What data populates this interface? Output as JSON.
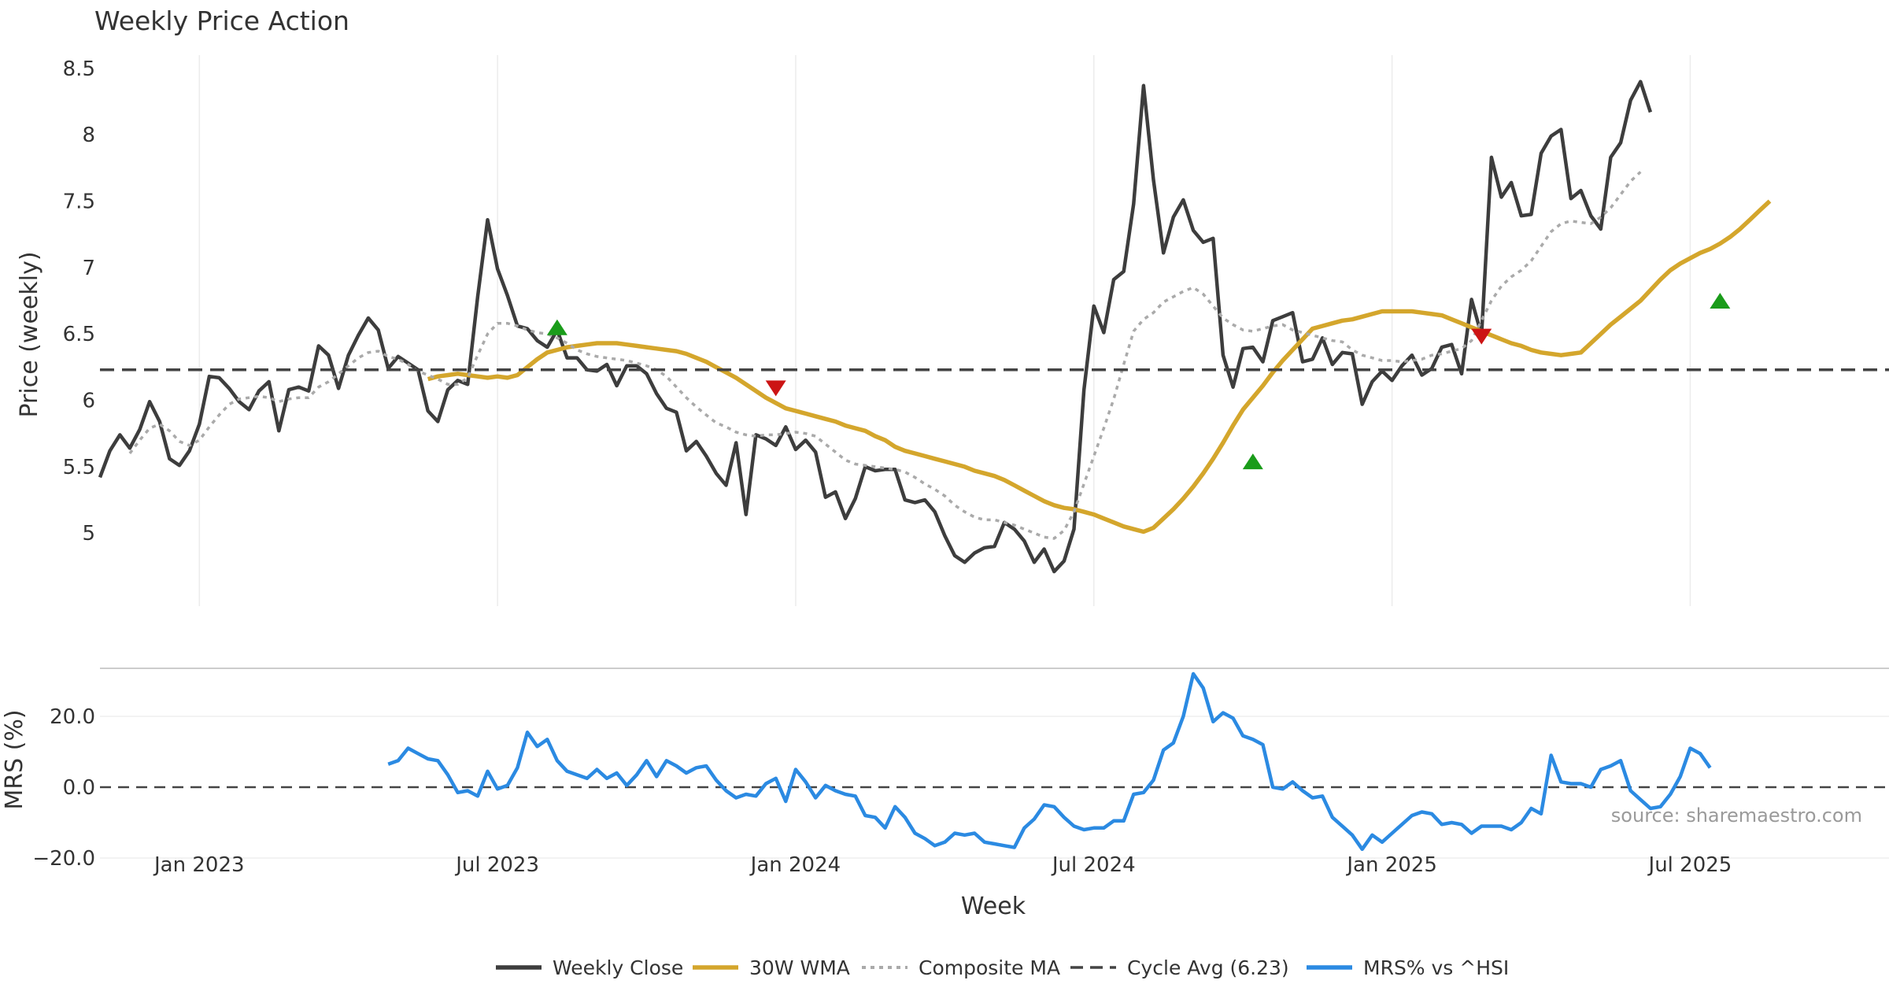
{
  "chart_data": {
    "type": "line",
    "title": "Weekly Price Action",
    "watermark": "source: sharemaestro.com",
    "xlabel": "Week",
    "x_ticks": [
      "Jan 2023",
      "Jul 2023",
      "Jan 2024",
      "Jul 2024",
      "Jan 2025",
      "Jul 2025"
    ],
    "x_range_weeks": [
      0,
      180
    ],
    "x_tick_weeks": [
      10,
      40,
      70,
      100,
      130,
      160
    ],
    "price_panel": {
      "ylabel": "Price (weekly)",
      "ylim": [
        4.45,
        8.6
      ],
      "y_ticks": [
        5,
        5.5,
        6,
        6.5,
        7,
        7.5,
        8,
        8.5
      ],
      "y_tick_labels": [
        "5",
        "5.5",
        "6",
        "6.5",
        "7",
        "7.5",
        "8",
        "8.5"
      ],
      "series": [
        {
          "name": "Weekly Close",
          "color": "#3d3d3d",
          "style": "solid",
          "start_week": 0,
          "values": [
            5.42,
            5.62,
            5.74,
            5.64,
            5.78,
            5.99,
            5.84,
            5.56,
            5.51,
            5.62,
            5.82,
            6.18,
            6.17,
            6.09,
            5.99,
            5.93,
            6.07,
            6.14,
            5.77,
            6.08,
            6.1,
            6.07,
            6.41,
            6.34,
            6.09,
            6.34,
            6.49,
            6.62,
            6.53,
            6.24,
            6.33,
            6.28,
            6.23,
            5.92,
            5.84,
            6.08,
            6.15,
            6.12,
            6.78,
            7.36,
            6.99,
            6.79,
            6.56,
            6.54,
            6.45,
            6.4,
            6.53,
            6.32,
            6.32,
            6.23,
            6.22,
            6.27,
            6.11,
            6.26,
            6.26,
            6.2,
            6.05,
            5.94,
            5.91,
            5.62,
            5.69,
            5.58,
            5.45,
            5.36,
            5.68,
            5.14,
            5.74,
            5.71,
            5.66,
            5.8,
            5.63,
            5.7,
            5.61,
            5.27,
            5.31,
            5.11,
            5.26,
            5.5,
            5.47,
            5.48,
            5.48,
            5.25,
            5.23,
            5.25,
            5.16,
            4.98,
            4.83,
            4.78,
            4.85,
            4.89,
            4.9,
            5.08,
            5.03,
            4.94,
            4.78,
            4.88,
            4.71,
            4.79,
            5.03,
            6.08,
            6.71,
            6.51,
            6.91,
            6.97,
            7.48,
            8.37,
            7.66,
            7.11,
            7.38,
            7.51,
            7.28,
            7.19,
            7.22,
            6.34,
            6.1,
            6.39,
            6.4,
            6.29,
            6.6,
            6.63,
            6.66,
            6.29,
            6.31,
            6.47,
            6.27,
            6.36,
            6.35,
            5.97,
            6.14,
            6.22,
            6.15,
            6.26,
            6.34,
            6.19,
            6.24,
            6.4,
            6.42,
            6.2,
            6.76,
            6.49,
            7.83,
            7.53,
            7.64,
            7.39,
            7.4,
            7.86,
            7.99,
            8.04,
            7.52,
            7.58,
            7.39,
            7.29,
            7.83,
            7.94,
            8.26,
            8.4,
            8.17
          ]
        },
        {
          "name": "30W WMA",
          "color": "#d4a62c",
          "style": "solid",
          "start_week": 33,
          "values": [
            6.16,
            6.18,
            6.19,
            6.2,
            6.19,
            6.18,
            6.17,
            6.18,
            6.17,
            6.19,
            6.25,
            6.31,
            6.36,
            6.38,
            6.4,
            6.41,
            6.42,
            6.43,
            6.43,
            6.43,
            6.42,
            6.41,
            6.4,
            6.39,
            6.38,
            6.37,
            6.35,
            6.32,
            6.29,
            6.25,
            6.21,
            6.17,
            6.12,
            6.07,
            6.02,
            5.98,
            5.94,
            5.92,
            5.9,
            5.88,
            5.86,
            5.84,
            5.81,
            5.79,
            5.77,
            5.73,
            5.7,
            5.65,
            5.62,
            5.6,
            5.58,
            5.56,
            5.54,
            5.52,
            5.5,
            5.47,
            5.45,
            5.43,
            5.4,
            5.36,
            5.32,
            5.28,
            5.24,
            5.21,
            5.19,
            5.18,
            5.16,
            5.14,
            5.11,
            5.08,
            5.05,
            5.03,
            5.01,
            5.04,
            5.11,
            5.18,
            5.26,
            5.35,
            5.45,
            5.56,
            5.68,
            5.81,
            5.93,
            6.02,
            6.11,
            6.21,
            6.3,
            6.38,
            6.46,
            6.54,
            6.56,
            6.58,
            6.6,
            6.61,
            6.63,
            6.65,
            6.67,
            6.67,
            6.67,
            6.67,
            6.66,
            6.65,
            6.64,
            6.61,
            6.58,
            6.55,
            6.52,
            6.49,
            6.46,
            6.43,
            6.41,
            6.38,
            6.36,
            6.35,
            6.34,
            6.35,
            6.36,
            6.43,
            6.5,
            6.57,
            6.63,
            6.69,
            6.75,
            6.83,
            6.91,
            6.98,
            7.03,
            7.07,
            7.11,
            7.14,
            7.18,
            7.23,
            7.29,
            7.36,
            7.43,
            7.5
          ]
        },
        {
          "name": "Composite MA",
          "color": "#aaaaaa",
          "style": "dotted",
          "start_week": 3,
          "values": [
            5.6,
            5.7,
            5.79,
            5.82,
            5.77,
            5.69,
            5.66,
            5.7,
            5.8,
            5.89,
            5.97,
            6.01,
            6.02,
            6.03,
            6.02,
            5.99,
            6.01,
            6.02,
            6.02,
            6.1,
            6.14,
            6.2,
            6.26,
            6.32,
            6.36,
            6.37,
            6.33,
            6.31,
            6.27,
            6.22,
            6.19,
            6.16,
            6.12,
            6.12,
            6.17,
            6.34,
            6.5,
            6.58,
            6.58,
            6.56,
            6.53,
            6.51,
            6.5,
            6.47,
            6.43,
            6.38,
            6.35,
            6.33,
            6.32,
            6.31,
            6.3,
            6.28,
            6.26,
            6.23,
            6.18,
            6.1,
            6.02,
            5.95,
            5.89,
            5.83,
            5.8,
            5.76,
            5.74,
            5.73,
            5.74,
            5.74,
            5.75,
            5.76,
            5.75,
            5.73,
            5.67,
            5.61,
            5.55,
            5.52,
            5.51,
            5.5,
            5.49,
            5.48,
            5.46,
            5.42,
            5.37,
            5.33,
            5.28,
            5.21,
            5.16,
            5.12,
            5.1,
            5.1,
            5.08,
            5.06,
            5.03,
            5.0,
            4.97,
            4.96,
            5.02,
            5.16,
            5.37,
            5.58,
            5.79,
            6.01,
            6.27,
            6.52,
            6.61,
            6.66,
            6.74,
            6.78,
            6.82,
            6.85,
            6.8,
            6.71,
            6.62,
            6.57,
            6.53,
            6.52,
            6.54,
            6.56,
            6.57,
            6.53,
            6.51,
            6.49,
            6.47,
            6.45,
            6.44,
            6.38,
            6.34,
            6.32,
            6.3,
            6.3,
            6.29,
            6.3,
            6.31,
            6.34,
            6.35,
            6.37,
            6.39,
            6.45,
            6.6,
            6.75,
            6.86,
            6.93,
            6.98,
            7.05,
            7.16,
            7.27,
            7.33,
            7.35,
            7.34,
            7.33,
            7.38,
            7.45,
            7.55,
            7.65,
            7.72
          ]
        },
        {
          "name": "Cycle Avg (6.23)",
          "color": "#444444",
          "style": "dashed",
          "value": 6.23
        }
      ],
      "signals": [
        {
          "type": "buy",
          "week": 46,
          "value": 6.55,
          "color": "#1a9c1a"
        },
        {
          "type": "sell",
          "week": 68,
          "value": 6.09,
          "color": "#cc1414"
        },
        {
          "type": "buy",
          "week": 116,
          "value": 5.54,
          "color": "#1a9c1a"
        },
        {
          "type": "sell",
          "week": 139,
          "value": 6.48,
          "color": "#cc1414"
        },
        {
          "type": "buy",
          "week": 163,
          "value": 6.75,
          "color": "#1a9c1a"
        }
      ]
    },
    "mrs_panel": {
      "ylabel": "MRS (%)",
      "ylim": [
        -20,
        32
      ],
      "y_ticks": [
        -20,
        0,
        20
      ],
      "y_tick_labels": [
        "−20.0",
        "0.0",
        "20.0"
      ],
      "series": [
        {
          "name": "MRS% vs ^HSI",
          "color": "#2b8ae2",
          "style": "solid",
          "start_week": 29,
          "values": [
            6.5,
            7.5,
            11,
            9.5,
            8,
            7.5,
            3.5,
            -1.5,
            -1,
            -2.5,
            4.5,
            -0.5,
            0.5,
            5.5,
            15.5,
            11.5,
            13.5,
            7.5,
            4.5,
            3.5,
            2.5,
            5,
            2.5,
            4,
            0.5,
            3.5,
            7.5,
            3,
            7.5,
            6,
            4,
            5.5,
            6,
            2,
            -1,
            -3,
            -2,
            -2.5,
            1,
            2.5,
            -4,
            5,
            1.5,
            -3,
            0.5,
            -1,
            -2,
            -2.5,
            -8,
            -8.5,
            -11.5,
            -5.5,
            -8.5,
            -13,
            -14.5,
            -16.5,
            -15.5,
            -13,
            -13.5,
            -13,
            -15.5,
            -16,
            -16.5,
            -17,
            -11.5,
            -9,
            -5,
            -5.5,
            -8.5,
            -11,
            -12,
            -11.5,
            -11.5,
            -9.5,
            -9.5,
            -2,
            -1.5,
            2,
            10.5,
            12.5,
            20,
            32,
            28,
            18.5,
            21,
            19.5,
            14.5,
            13.5,
            12,
            0,
            -0.5,
            1.5,
            -1,
            -3,
            -2.5,
            -8.5,
            -11,
            -13.5,
            -17.5,
            -13.5,
            -15.5,
            -13,
            -10.5,
            -8,
            -7,
            -7.5,
            -10.5,
            -10,
            -10.5,
            -13,
            -11,
            -11,
            -11,
            -12,
            -10,
            -6,
            -7.5,
            9,
            1.5,
            1,
            1,
            0,
            5,
            6,
            7.5,
            -1,
            -3.5,
            -6,
            -5.5,
            -2,
            3,
            11,
            9.5,
            5.5
          ]
        }
      ]
    },
    "legend": {
      "position": "bottom-center",
      "items": [
        {
          "label": "Weekly Close",
          "color": "#3d3d3d",
          "style": "solid"
        },
        {
          "label": "30W WMA",
          "color": "#d4a62c",
          "style": "solid"
        },
        {
          "label": "Composite MA",
          "color": "#aaaaaa",
          "style": "dotted"
        },
        {
          "label": "Cycle Avg (6.23)",
          "color": "#444444",
          "style": "dashed"
        },
        {
          "label": "MRS% vs ^HSI",
          "color": "#2b8ae2",
          "style": "solid"
        }
      ]
    }
  }
}
